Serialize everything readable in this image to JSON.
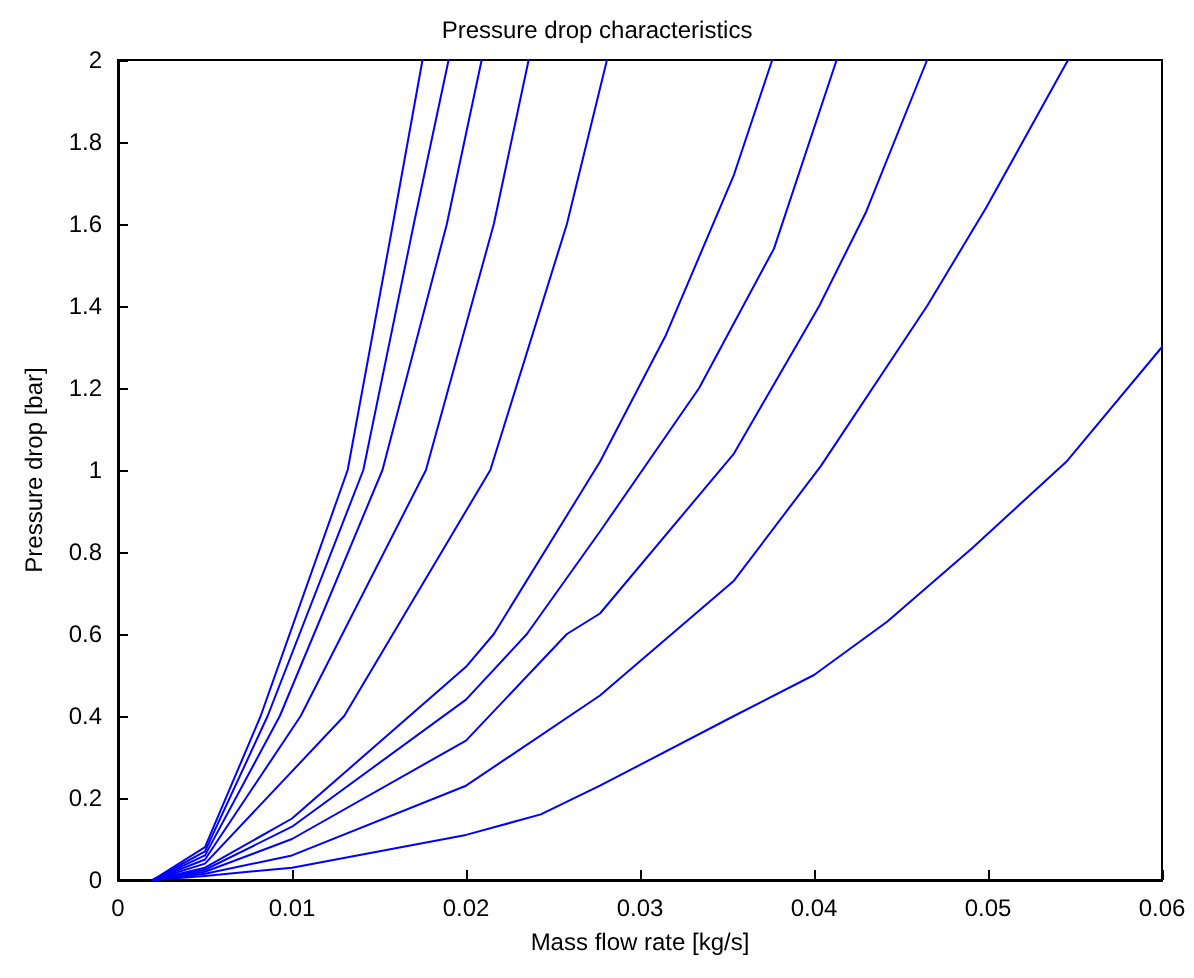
{
  "chart_data": {
    "type": "line",
    "title": "Pressure drop characteristics",
    "xlabel": "Mass flow rate [kg/s]",
    "ylabel": "Pressure drop [bar]",
    "xlim": [
      0,
      0.06
    ],
    "ylim": [
      0,
      2
    ],
    "xticks": [
      0,
      0.01,
      0.02,
      0.03,
      0.04,
      0.05,
      0.06
    ],
    "yticks": [
      0,
      0.2,
      0.4,
      0.6,
      0.8,
      1,
      1.2,
      1.4,
      1.6,
      1.8,
      2
    ],
    "marker": "none",
    "line_style": "solid",
    "series": [
      {
        "color": "#0000ff",
        "x": [
          0.002,
          0.005,
          0.0082,
          0.0132,
          0.0158,
          0.0175
        ],
        "values": [
          0,
          0.08,
          0.4,
          1,
          1.6,
          2
        ]
      },
      {
        "color": "#0000ff",
        "x": [
          0.002,
          0.005,
          0.0086,
          0.0141,
          0.017,
          0.019
        ],
        "values": [
          0,
          0.07,
          0.4,
          1,
          1.6,
          2
        ]
      },
      {
        "color": "#0000ff",
        "x": [
          0.002,
          0.005,
          0.0093,
          0.0152,
          0.0189,
          0.0209
        ],
        "values": [
          0,
          0.06,
          0.4,
          1,
          1.6,
          2
        ]
      },
      {
        "color": "#0000ff",
        "x": [
          0.002,
          0.005,
          0.0105,
          0.0177,
          0.0216,
          0.0236
        ],
        "values": [
          0,
          0.05,
          0.4,
          1,
          1.6,
          2
        ]
      },
      {
        "color": "#0000ff",
        "x": [
          0.002,
          0.005,
          0.013,
          0.0214,
          0.0258,
          0.0281
        ],
        "values": [
          0,
          0.04,
          0.4,
          1,
          1.6,
          2
        ]
      },
      {
        "color": "#0000ff",
        "x": [
          0.002,
          0.005,
          0.01,
          0.02,
          0.0216,
          0.0277,
          0.0315,
          0.0354,
          0.0376
        ],
        "values": [
          0,
          0.03,
          0.15,
          0.52,
          0.6,
          1.02,
          1.33,
          1.72,
          2
        ]
      },
      {
        "color": "#0000ff",
        "x": [
          0.002,
          0.005,
          0.01,
          0.02,
          0.0235,
          0.0277,
          0.0334,
          0.0377,
          0.0413
        ],
        "values": [
          0,
          0.025,
          0.13,
          0.44,
          0.6,
          0.85,
          1.2,
          1.54,
          2
        ]
      },
      {
        "color": "#0000ff",
        "x": [
          0.002,
          0.005,
          0.01,
          0.02,
          0.0258,
          0.0277,
          0.0354,
          0.0403,
          0.043,
          0.0465
        ],
        "values": [
          0,
          0.02,
          0.1,
          0.34,
          0.6,
          0.65,
          1.04,
          1.4,
          1.63,
          2
        ]
      },
      {
        "color": "#0000ff",
        "x": [
          0.002,
          0.005,
          0.01,
          0.02,
          0.0277,
          0.0354,
          0.0404,
          0.0465,
          0.0499,
          0.0546
        ],
        "values": [
          0,
          0.015,
          0.06,
          0.23,
          0.45,
          0.73,
          1.01,
          1.4,
          1.64,
          2
        ]
      },
      {
        "color": "#0000ff",
        "x": [
          0.002,
          0.005,
          0.01,
          0.02,
          0.0243,
          0.0277,
          0.0354,
          0.04,
          0.0442,
          0.0491,
          0.0545,
          0.06
        ],
        "values": [
          0,
          0.01,
          0.03,
          0.11,
          0.16,
          0.23,
          0.4,
          0.5,
          0.63,
          0.81,
          1.02,
          1.3
        ]
      }
    ]
  }
}
